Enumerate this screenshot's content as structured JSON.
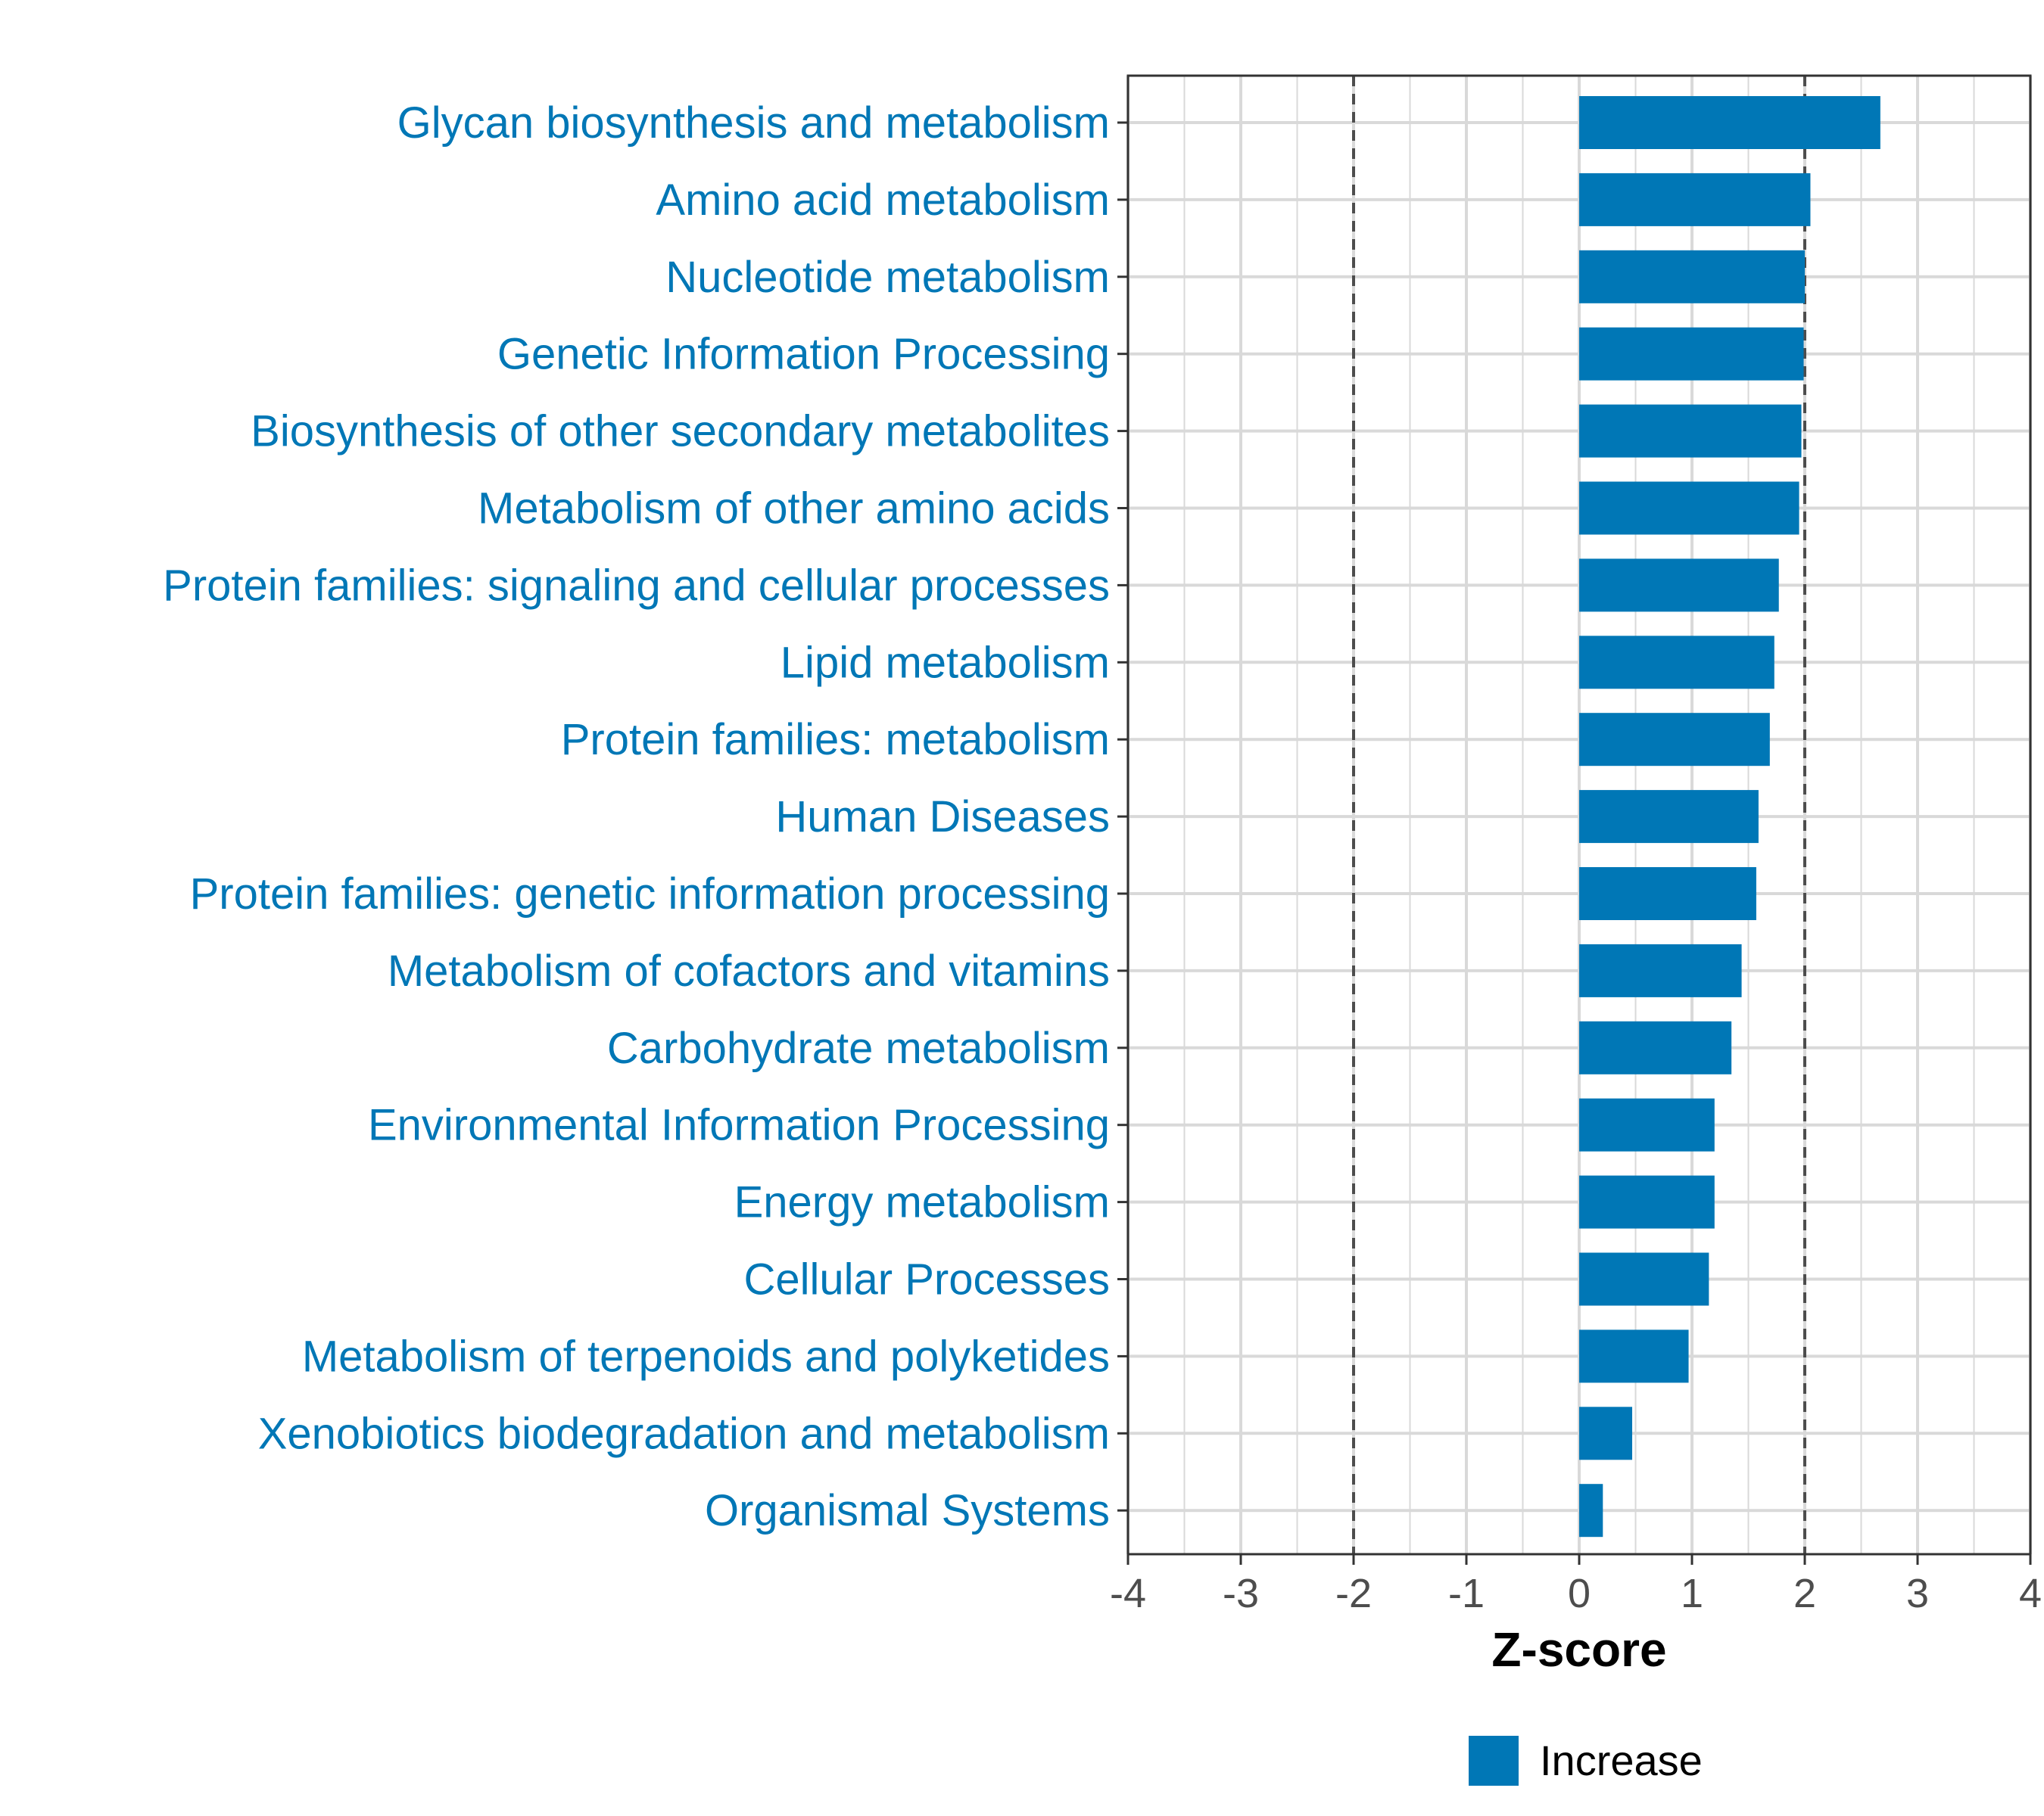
{
  "chart_data": {
    "type": "bar",
    "orientation": "horizontal",
    "categories": [
      "Glycan biosynthesis and metabolism",
      "Amino acid metabolism",
      "Nucleotide metabolism",
      "Genetic Information Processing",
      "Biosynthesis of other secondary metabolites",
      "Metabolism of other amino acids",
      "Protein families: signaling and cellular processes",
      "Lipid metabolism",
      "Protein families: metabolism",
      "Human Diseases",
      "Protein families: genetic information processing",
      "Metabolism of cofactors and vitamins",
      "Carbohydrate metabolism",
      "Environmental Information Processing",
      "Energy metabolism",
      "Cellular Processes",
      "Metabolism of terpenoids and polyketides",
      "Xenobiotics biodegradation and metabolism",
      "Organismal Systems"
    ],
    "values": [
      2.67,
      2.05,
      2.0,
      1.99,
      1.97,
      1.95,
      1.77,
      1.73,
      1.69,
      1.59,
      1.57,
      1.44,
      1.35,
      1.2,
      1.2,
      1.15,
      0.97,
      0.47,
      0.21
    ],
    "xlabel": "Z-score",
    "ylabel": "",
    "xlim": [
      -4,
      4
    ],
    "xticks": [
      "-4",
      "-3",
      "-2",
      "-1",
      "0",
      "1",
      "2",
      "3",
      "4"
    ],
    "reference_lines": [
      -2,
      2
    ],
    "legend": [
      {
        "name": "Increase",
        "color": "#0077b6"
      }
    ],
    "legend_position": "bottom",
    "grid": true,
    "colors": {
      "bar": "#0077b6",
      "label": "#0077b6",
      "grid": "#d9d9d9",
      "axis": "#333333",
      "tick_text": "#4d4d4d"
    }
  }
}
